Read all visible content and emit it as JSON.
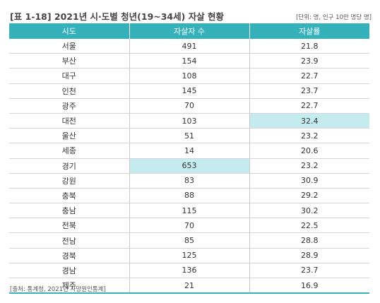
{
  "title": "[표 1-18] 2021년 시·도별 청년(19~34세) 자살 현황",
  "unit": "[단위: 명, 인구 10만 명당 명]",
  "colors": {
    "header": "#35b1bb",
    "highlight": "#c4ecef"
  },
  "table": {
    "headers": [
      "시도",
      "자살자 수",
      "자살률"
    ],
    "rows": [
      [
        "서울",
        "491",
        "21.8"
      ],
      [
        "부산",
        "154",
        "23.9"
      ],
      [
        "대구",
        "108",
        "22.7"
      ],
      [
        "인천",
        "145",
        "23.7"
      ],
      [
        "광주",
        "70",
        "22.7"
      ],
      [
        "대전",
        "103",
        "32.4"
      ],
      [
        "울산",
        "51",
        "23.2"
      ],
      [
        "세종",
        "14",
        "20.6"
      ],
      [
        "경기",
        "653",
        "23.2"
      ],
      [
        "강원",
        "83",
        "30.9"
      ],
      [
        "충북",
        "88",
        "29.2"
      ],
      [
        "충남",
        "115",
        "30.2"
      ],
      [
        "전북",
        "70",
        "22.5"
      ],
      [
        "전남",
        "85",
        "28.8"
      ],
      [
        "경북",
        "125",
        "28.9"
      ],
      [
        "경남",
        "136",
        "23.7"
      ],
      [
        "제주",
        "21",
        "16.9"
      ]
    ],
    "highlighted_cells": [
      {
        "row": 5,
        "col": 2
      },
      {
        "row": 8,
        "col": 1
      }
    ]
  },
  "source": "[출처: 통계청, 2021년 사망원인통계]"
}
